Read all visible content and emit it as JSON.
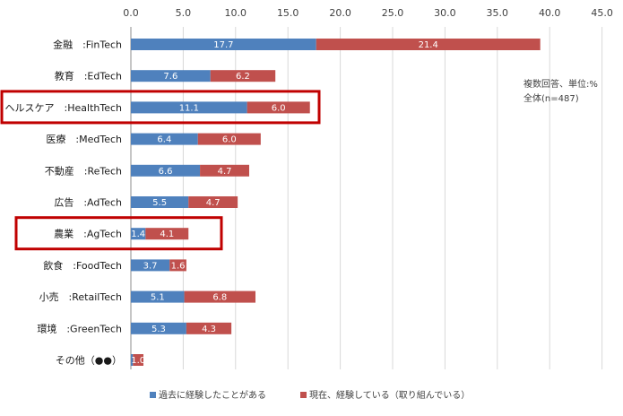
{
  "chart_data": {
    "type": "bar",
    "orientation": "horizontal",
    "stacked": true,
    "categories": [
      "金融　:FinTech",
      "教育　:EdTech",
      "ヘルスケア　:HealthTech",
      "医療　:MedTech",
      "不動産　:ReTech",
      "広告　:AdTech",
      "農業　:AgTech",
      "飲食　:FoodTech",
      "小売　:RetailTech",
      "環境　:GreenTech",
      "その他（●●）"
    ],
    "series": [
      {
        "name": "過去に経験したことがある",
        "color": "#4f81bd",
        "values": [
          17.7,
          7.6,
          11.1,
          6.4,
          6.6,
          5.5,
          1.4,
          3.7,
          5.1,
          5.3,
          0.2
        ]
      },
      {
        "name": "現在、経験している（取り組んでいる）",
        "color": "#c0504d",
        "values": [
          21.4,
          6.2,
          6.0,
          6.0,
          4.7,
          4.7,
          4.1,
          1.6,
          6.8,
          4.3,
          1.0
        ]
      }
    ],
    "data_labels": [
      [
        "17.7",
        "7.6",
        "11.1",
        "6.4",
        "6.6",
        "5.5",
        "1.4",
        "3.7",
        "5.1",
        "5.3",
        ""
      ],
      [
        "21.4",
        "6.2",
        "6.0",
        "6.0",
        "4.7",
        "4.7",
        "4.1",
        "1.6",
        "6.8",
        "4.3",
        "1.0"
      ]
    ],
    "xlim": [
      0,
      45
    ],
    "xticks": [
      "0.0",
      "5.0",
      "10.0",
      "15.0",
      "20.0",
      "25.0",
      "30.0",
      "35.0",
      "40.0",
      "45.0"
    ],
    "xaxis_position": "top",
    "grid": true,
    "legend_position": "bottom",
    "highlighted_categories": [
      2,
      6
    ],
    "highlight_color": "#c00000",
    "annotation": [
      "複数回答、単位:%",
      "全体(n=487)"
    ]
  }
}
